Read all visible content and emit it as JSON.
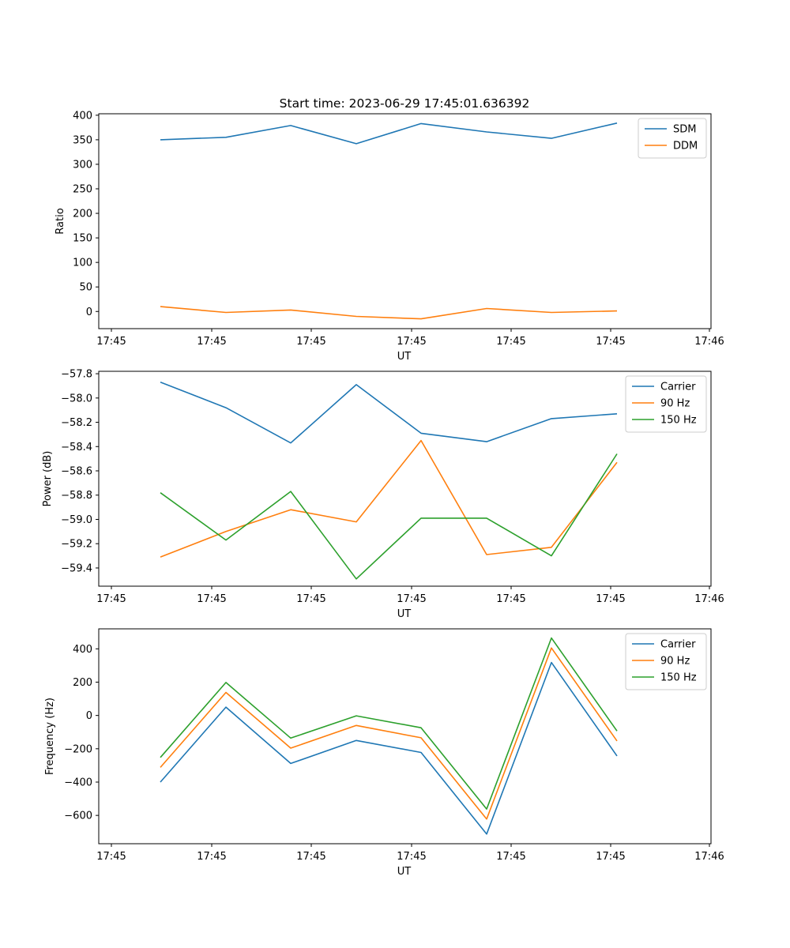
{
  "figure_title": "Start time: 2023-06-29 17:45:01.636392",
  "colors": {
    "blue": "#1f77b4",
    "orange": "#ff7f0e",
    "green": "#2ca02c"
  },
  "chart_data": [
    {
      "type": "line",
      "xlabel": "UT",
      "ylabel": "Ratio",
      "x_tick_labels": [
        "17:45",
        "17:45",
        "17:45",
        "17:45",
        "17:45",
        "17:45",
        "17:46"
      ],
      "y_ticks": [
        0,
        50,
        100,
        150,
        200,
        250,
        300,
        350,
        400
      ],
      "ylim": [
        -35,
        403
      ],
      "legend_position": "top-right",
      "series": [
        {
          "name": "SDM",
          "color": "#1f77b4",
          "values": [
            350,
            355,
            379,
            342,
            383,
            366,
            353,
            384
          ]
        },
        {
          "name": "DDM",
          "color": "#ff7f0e",
          "values": [
            10,
            -2,
            3,
            -10,
            -15,
            6,
            -2,
            1
          ]
        }
      ]
    },
    {
      "type": "line",
      "xlabel": "UT",
      "ylabel": "Power (dB)",
      "x_tick_labels": [
        "17:45",
        "17:45",
        "17:45",
        "17:45",
        "17:45",
        "17:45",
        "17:46"
      ],
      "y_ticks": [
        -57.8,
        -58.0,
        -58.2,
        -58.4,
        -58.6,
        -58.8,
        -59.0,
        -59.2,
        -59.4
      ],
      "ylim": [
        -59.55,
        -57.78
      ],
      "legend_position": "top-right",
      "series": [
        {
          "name": "Carrier",
          "color": "#1f77b4",
          "values": [
            -57.87,
            -58.08,
            -58.37,
            -57.89,
            -58.29,
            -58.36,
            -58.17,
            -58.13
          ]
        },
        {
          "name": "90 Hz",
          "color": "#ff7f0e",
          "values": [
            -59.31,
            -59.1,
            -58.92,
            -59.02,
            -58.35,
            -59.29,
            -59.23,
            -58.53
          ]
        },
        {
          "name": "150 Hz",
          "color": "#2ca02c",
          "values": [
            -58.78,
            -59.17,
            -58.77,
            -59.49,
            -58.99,
            -58.99,
            -59.3,
            -58.46
          ]
        }
      ]
    },
    {
      "type": "line",
      "xlabel": "UT",
      "ylabel": "Frequency (Hz)",
      "x_tick_labels": [
        "17:45",
        "17:45",
        "17:45",
        "17:45",
        "17:45",
        "17:45",
        "17:46"
      ],
      "y_ticks": [
        400,
        200,
        0,
        -200,
        -400,
        -600
      ],
      "ylim": [
        -770,
        520
      ],
      "legend_position": "top-right",
      "series": [
        {
          "name": "Carrier",
          "color": "#1f77b4",
          "values": [
            -400,
            50,
            -288,
            -150,
            -222,
            -712,
            318,
            -243
          ]
        },
        {
          "name": "90 Hz",
          "color": "#ff7f0e",
          "values": [
            -312,
            138,
            -196,
            -60,
            -134,
            -622,
            405,
            -153
          ]
        },
        {
          "name": "150 Hz",
          "color": "#2ca02c",
          "values": [
            -252,
            198,
            -136,
            -2,
            -74,
            -562,
            465,
            -93
          ]
        }
      ]
    }
  ]
}
